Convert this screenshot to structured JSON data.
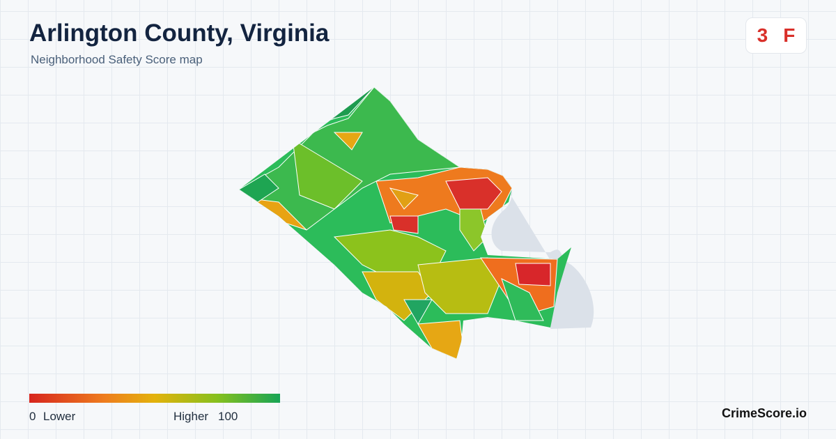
{
  "header": {
    "title": "Arlington County, Virginia",
    "subtitle": "Neighborhood Safety Score map"
  },
  "badge": {
    "score": "3",
    "grade": "F"
  },
  "legend": {
    "min": "0",
    "min_label": "Lower",
    "max_label": "Higher",
    "max": "100"
  },
  "brand": "CrimeScore.io"
}
